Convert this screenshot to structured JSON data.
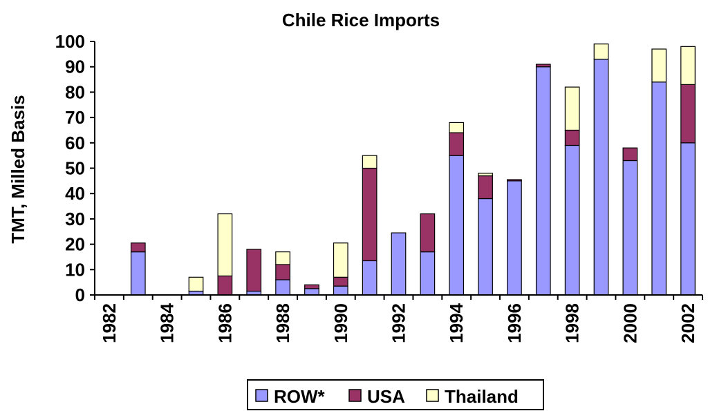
{
  "chart_data": {
    "type": "bar",
    "stacked": true,
    "title": "Chile Rice Imports",
    "xlabel": "",
    "ylabel": "TMT, Milled Basis",
    "ylim": [
      0,
      100
    ],
    "yticks": [
      0,
      10,
      20,
      30,
      40,
      50,
      60,
      70,
      80,
      90,
      100
    ],
    "categories": [
      "1982",
      "1983",
      "1984",
      "1985",
      "1986",
      "1987",
      "1988",
      "1989",
      "1990",
      "1991",
      "1992",
      "1993",
      "1994",
      "1995",
      "1996",
      "1997",
      "1998",
      "1999",
      "2000",
      "2001",
      "2002"
    ],
    "xtick_labels": [
      "1982",
      "1984",
      "1986",
      "1988",
      "1990",
      "1992",
      "1994",
      "1996",
      "1998",
      "2000",
      "2002"
    ],
    "series": [
      {
        "name": "ROW*",
        "color": "#9999ff",
        "values": [
          0,
          17,
          0,
          1.5,
          0,
          1.5,
          6,
          2.5,
          3.5,
          13.5,
          24.5,
          17,
          55,
          38,
          45,
          90,
          59,
          93,
          53,
          84,
          60
        ]
      },
      {
        "name": "USA",
        "color": "#993366",
        "values": [
          0,
          3.5,
          0,
          0,
          7.5,
          16.5,
          6,
          1.5,
          3.5,
          36.5,
          0,
          15,
          9,
          9,
          0.5,
          1,
          6,
          0,
          5,
          0,
          23
        ]
      },
      {
        "name": "Thailand",
        "color": "#ffffcc",
        "values": [
          0,
          0,
          0,
          5.5,
          24.5,
          0,
          5,
          0,
          13.5,
          5,
          0,
          0,
          4,
          1,
          0,
          0,
          17,
          6,
          0,
          13,
          15
        ]
      }
    ],
    "legend_position": "bottom-center",
    "grid": false
  }
}
